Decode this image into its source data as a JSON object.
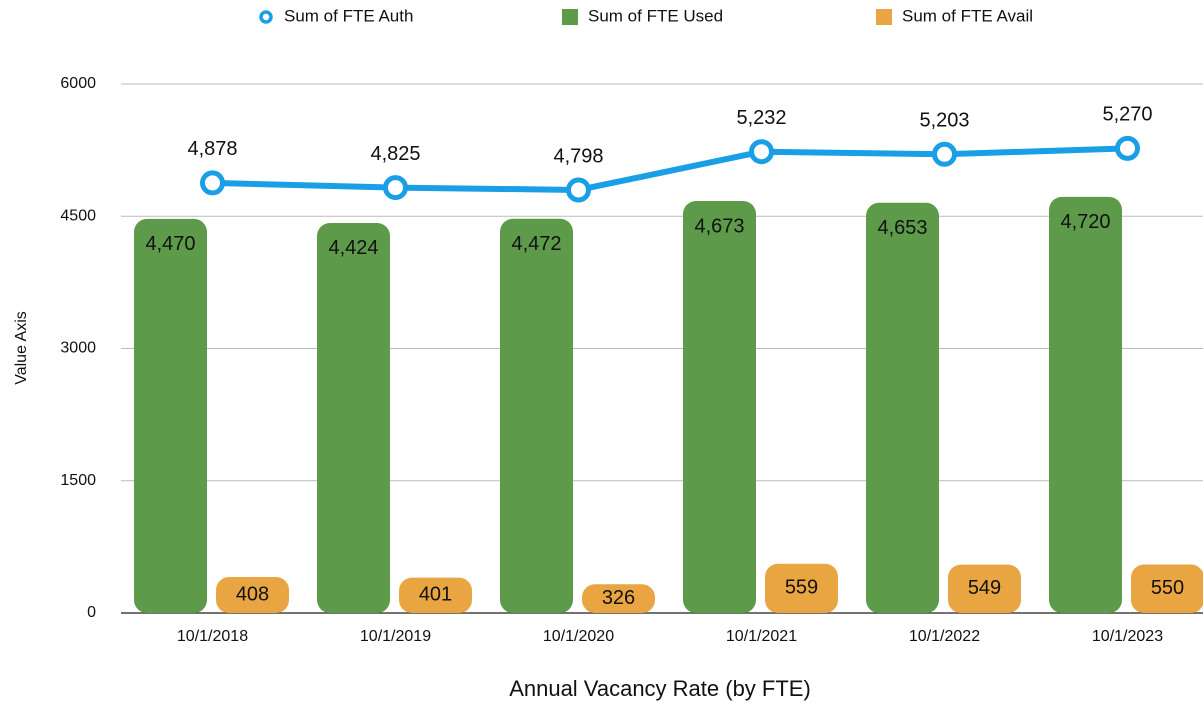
{
  "chart_data": {
    "type": "bar",
    "x_label": "Annual Vacancy Rate (by FTE)",
    "y_label": "Value Axis",
    "categories": [
      "10/1/2018",
      "10/1/2019",
      "10/1/2020",
      "10/1/2021",
      "10/1/2022",
      "10/1/2023"
    ],
    "series": [
      {
        "name": "Sum of FTE Auth",
        "type": "line",
        "color": "#1a9fe6",
        "values": [
          4878,
          4825,
          4798,
          5232,
          5203,
          5270
        ],
        "value_labels": [
          "4,878",
          "4,825",
          "4,798",
          "5,232",
          "5,203",
          "5,270"
        ]
      },
      {
        "name": "Sum of FTE Used",
        "type": "bar",
        "color": "#5d9a4a",
        "values": [
          4470,
          4424,
          4472,
          4673,
          4653,
          4720
        ],
        "value_labels": [
          "4,470",
          "4,424",
          "4,472",
          "4,673",
          "4,653",
          "4,720"
        ]
      },
      {
        "name": "Sum of FTE Avail",
        "type": "bar",
        "color": "#e9a542",
        "values": [
          408,
          401,
          326,
          559,
          549,
          550
        ]
      }
    ],
    "ylim": [
      0,
      6000
    ],
    "yticks": [
      0,
      1500,
      3000,
      4500,
      6000
    ],
    "grid": true,
    "legend": "top"
  }
}
